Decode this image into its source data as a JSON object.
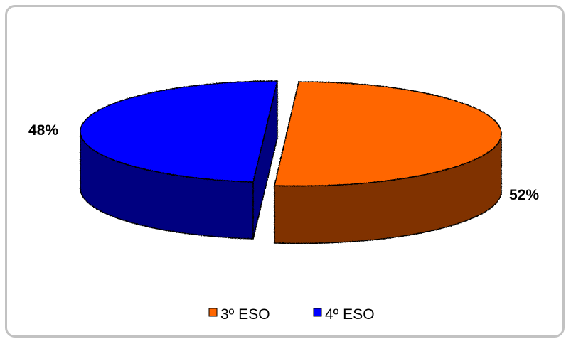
{
  "chart_data": {
    "type": "pie",
    "style": "3d-exploded",
    "categories": [
      "3º ESO",
      "4º ESO"
    ],
    "values": [
      52,
      48
    ],
    "data_labels": [
      "52%",
      "48%"
    ],
    "colors": {
      "3º ESO": {
        "top": "#ff6600",
        "side": "#803300"
      },
      "4º ESO": {
        "top": "#0000ff",
        "side": "#000080"
      }
    },
    "legend": {
      "position": "bottom",
      "items": [
        "3º ESO",
        "4º ESO"
      ]
    }
  }
}
